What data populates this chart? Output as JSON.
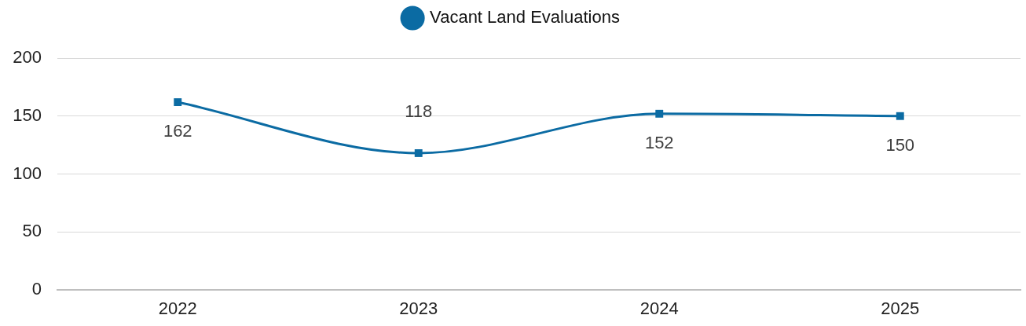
{
  "chart_data": {
    "type": "line",
    "categories": [
      "2022",
      "2023",
      "2024",
      "2025"
    ],
    "series": [
      {
        "name": "Vacant Land Evaluations",
        "color": "#0b6ba3",
        "values": [
          162,
          118,
          152,
          150
        ]
      }
    ],
    "ylim": [
      0,
      200
    ],
    "yticks": [
      0,
      50,
      100,
      150,
      200
    ],
    "grid": "y",
    "legend": "top",
    "marker": "square",
    "data_labels": true
  }
}
